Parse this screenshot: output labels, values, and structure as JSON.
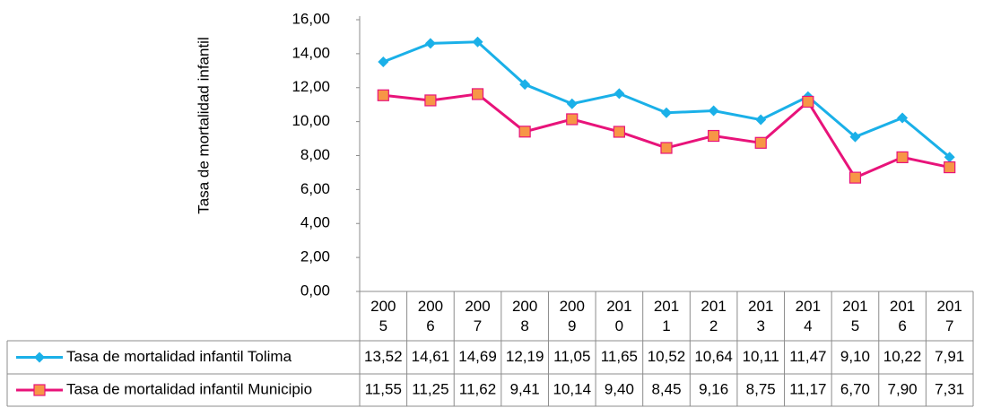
{
  "chart_data": {
    "type": "line",
    "y_label": "Tasa de mortalidad infantil",
    "categories": [
      "2005",
      "2006",
      "2007",
      "2008",
      "2009",
      "2010",
      "2011",
      "2012",
      "2013",
      "2014",
      "2015",
      "2016",
      "2017"
    ],
    "series": [
      {
        "name": "Tasa de mortalidad infantil Tolima",
        "color": "#1ab0e8",
        "marker": "diamond",
        "values": [
          13.52,
          14.61,
          14.69,
          12.19,
          11.05,
          11.65,
          10.52,
          10.64,
          10.11,
          11.47,
          9.1,
          10.22,
          7.91
        ],
        "value_labels": [
          "13,52",
          "14,61",
          "14,69",
          "12,19",
          "11,05",
          "11,65",
          "10,52",
          "10,64",
          "10,11",
          "11,47",
          "9,10",
          "10,22",
          "7,91"
        ]
      },
      {
        "name": "Tasa de mortalidad infantil Municipio",
        "color": "#e8137a",
        "marker": "square",
        "marker_fill": "#f79646",
        "values": [
          11.55,
          11.25,
          11.62,
          9.41,
          10.14,
          9.4,
          8.45,
          9.16,
          8.75,
          11.17,
          6.7,
          7.9,
          7.31
        ],
        "value_labels": [
          "11,55",
          "11,25",
          "11,62",
          "9,41",
          "10,14",
          "9,40",
          "8,45",
          "9,16",
          "8,75",
          "11,17",
          "6,70",
          "7,90",
          "7,31"
        ]
      }
    ],
    "ylim": [
      0,
      16
    ],
    "yticks": [
      {
        "value": 0,
        "label": "0,00"
      },
      {
        "value": 2,
        "label": "2,00"
      },
      {
        "value": 4,
        "label": "4,00"
      },
      {
        "value": 6,
        "label": "6,00"
      },
      {
        "value": 8,
        "label": "8,00"
      },
      {
        "value": 10,
        "label": "10,00"
      },
      {
        "value": 12,
        "label": "12,00"
      },
      {
        "value": 14,
        "label": "14,00"
      },
      {
        "value": 16,
        "label": "16,00"
      }
    ],
    "grid": false
  }
}
